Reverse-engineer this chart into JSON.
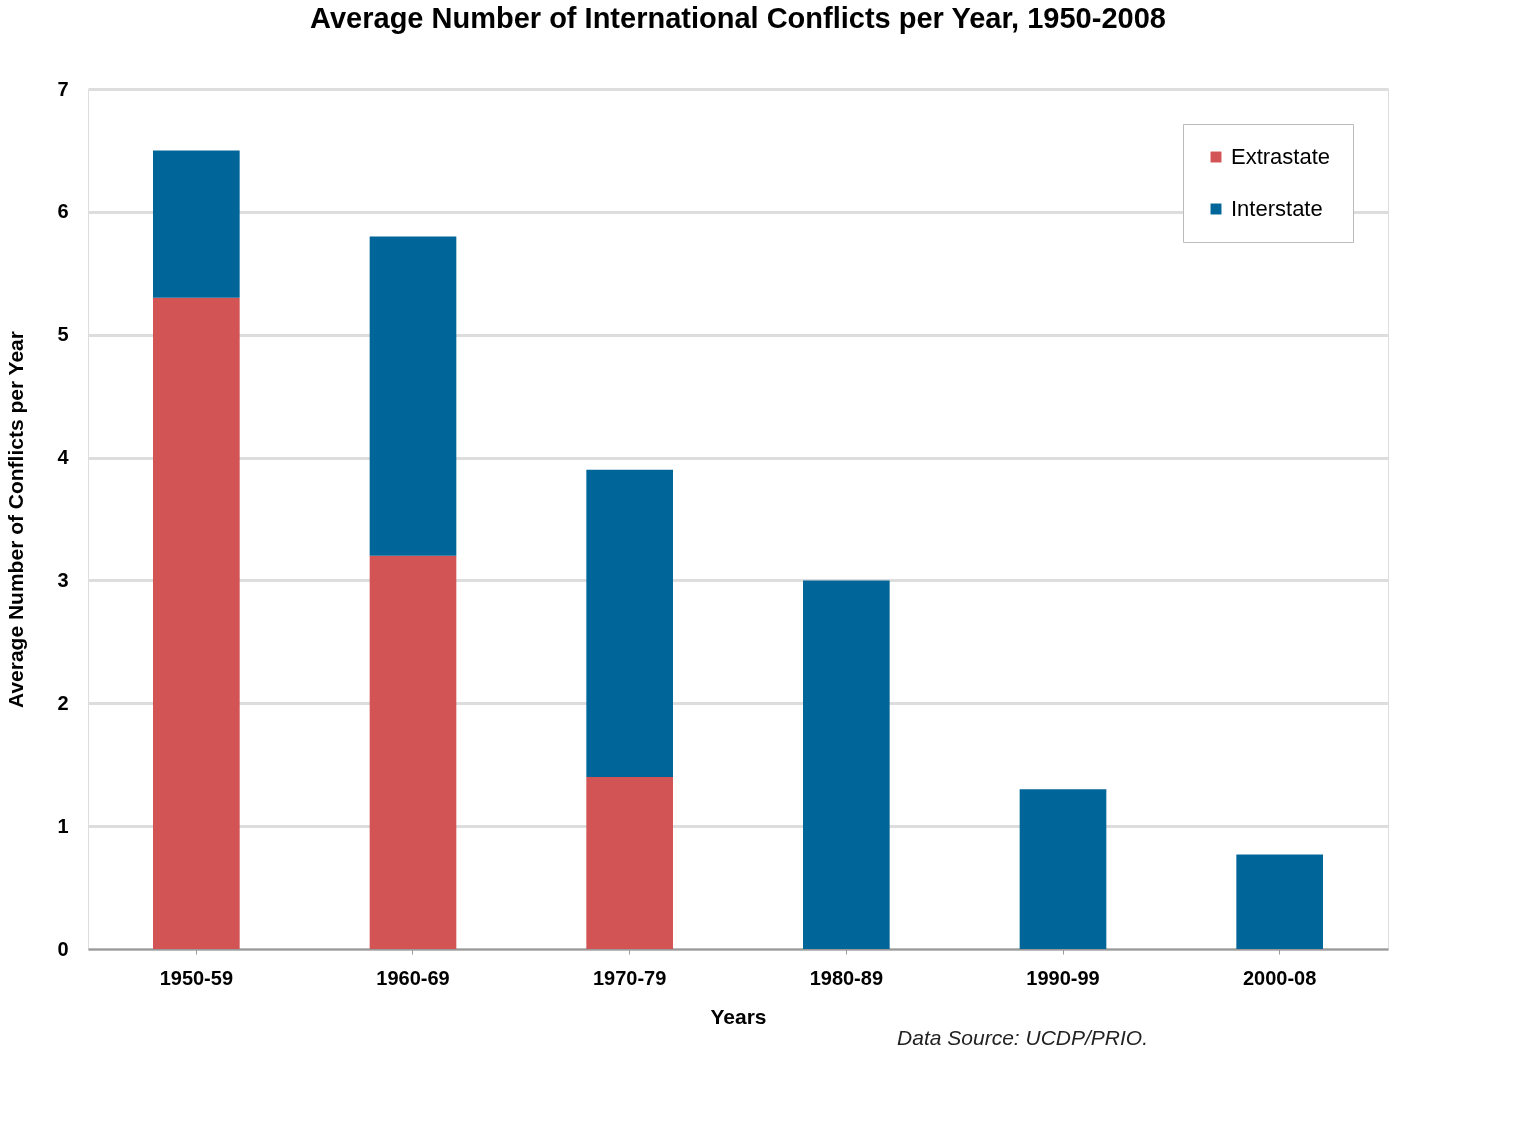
{
  "chart_data": {
    "type": "bar",
    "title": "Average Number of International Conflicts per Year, 1950-2008",
    "xlabel": "Years",
    "ylabel": "Average Number of Conflicts per Year",
    "categories": [
      "1950-59",
      "1960-69",
      "1970-79",
      "1980-89",
      "1990-99",
      "2000-08"
    ],
    "series": [
      {
        "name": "Extrastate",
        "color": "#d35454",
        "values": [
          5.3,
          3.2,
          1.4,
          0,
          0,
          0
        ]
      },
      {
        "name": "Interstate",
        "color": "#006699",
        "values": [
          1.2,
          2.6,
          2.5,
          3.0,
          1.3,
          0.77
        ]
      }
    ],
    "stacked": true,
    "ylim": [
      0,
      7
    ],
    "yticks": [
      0,
      1,
      2,
      3,
      4,
      5,
      6,
      7
    ],
    "grid": "y",
    "legend": "top right",
    "annotations": [
      "Data Source: UCDP/PRIO."
    ]
  }
}
